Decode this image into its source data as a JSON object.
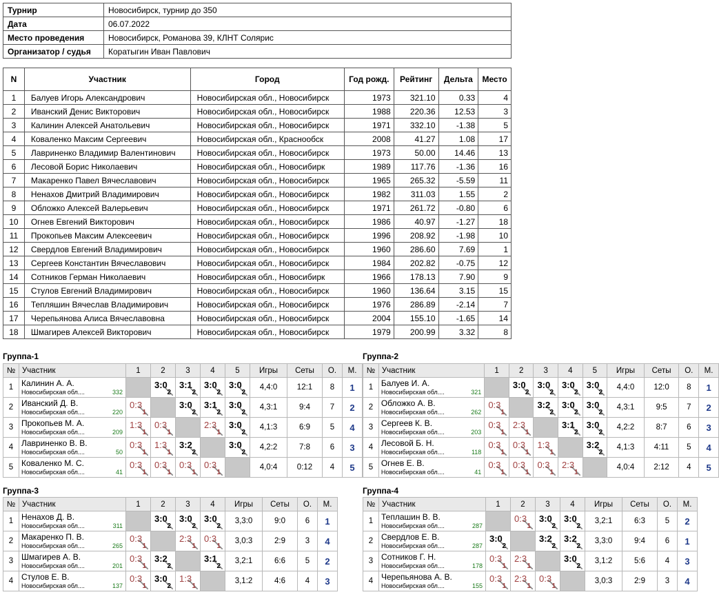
{
  "info": {
    "rows": [
      {
        "k": "Турнир",
        "v": "Новосибирск, турнир до 350"
      },
      {
        "k": "Дата",
        "v": "06.07.2022"
      },
      {
        "k": "Место проведения",
        "v": "Новосибирск, Романова 39, КЛНТ Солярис"
      },
      {
        "k": "Организатор / судья",
        "v": "Коратыгин Иван Павлович"
      }
    ]
  },
  "players": {
    "headers": [
      "N",
      "Участник",
      "Город",
      "Год рожд.",
      "Рейтинг",
      "Дельта",
      "Место"
    ],
    "rows": [
      [
        "1",
        "Балуев Игорь Александрович",
        "Новосибирская обл., Новосибирск",
        "1973",
        "321.10",
        "0.33",
        "4"
      ],
      [
        "2",
        "Иванский Денис Викторович",
        "Новосибирская обл., Новосибирск",
        "1988",
        "220.36",
        "12.53",
        "3"
      ],
      [
        "3",
        "Калинин Алексей Анатольевич",
        "Новосибирская обл., Новосибирск",
        "1971",
        "332.10",
        "-1.38",
        "5"
      ],
      [
        "4",
        "Коваленко Максим Сергеевич",
        "Новосибирская обл., Краснообск",
        "2008",
        "41.27",
        "1.08",
        "17"
      ],
      [
        "5",
        "Лавриненко Владимир Валентинович",
        "Новосибирская обл., Новосибирск",
        "1973",
        "50.00",
        "14.46",
        "13"
      ],
      [
        "6",
        "Лесовой Борис Николаевич",
        "Новосибирская обл., Новосибирк",
        "1989",
        "117.76",
        "-1.36",
        "16"
      ],
      [
        "7",
        "Макаренко Павел Вячеславович",
        "Новосибирская обл., Новосибирск",
        "1965",
        "265.32",
        "-5.59",
        "11"
      ],
      [
        "8",
        "Ненахов Дмитрий Владимирович",
        "Новосибирская обл., Новосибирск",
        "1982",
        "311.03",
        "1.55",
        "2"
      ],
      [
        "9",
        "Обложко Алексей Валерьевич",
        "Новосибирская обл., Новосибирск",
        "1971",
        "261.72",
        "-0.80",
        "6"
      ],
      [
        "10",
        "Огнев Евгений Викторович",
        "Новосибирская обл., Новосибирск",
        "1986",
        "40.97",
        "-1.27",
        "18"
      ],
      [
        "11",
        "Прокопьев Максим Алексеевич",
        "Новосибирская обл., Новосибирск",
        "1996",
        "208.92",
        "-1.98",
        "10"
      ],
      [
        "12",
        "Свердлов Евгений Владимирович",
        "Новосибирская обл., Новосибирск",
        "1960",
        "286.60",
        "7.69",
        "1"
      ],
      [
        "13",
        "Сергеев Константин Вячеславович",
        "Новосибирская обл., Новосибирск",
        "1984",
        "202.82",
        "-0.75",
        "12"
      ],
      [
        "14",
        "Сотников Герман Николаевич",
        "Новосибирская обл., Новосибирк",
        "1966",
        "178.13",
        "7.90",
        "9"
      ],
      [
        "15",
        "Стулов Евгений Владимирович",
        "Новосибирская обл., Новосибирск",
        "1960",
        "136.64",
        "3.15",
        "15"
      ],
      [
        "16",
        "Тепляшин Вячеслав Владимирович",
        "Новосибирская обл., Новосибирск",
        "1976",
        "286.89",
        "-2.14",
        "7"
      ],
      [
        "17",
        "Черепьянова Алиса Вячеславовна",
        "Новосибирская обл., Новосибирск",
        "2004",
        "155.10",
        "-1.65",
        "14"
      ],
      [
        "18",
        "Шмагирев Алексей Викторович",
        "Новосибирская обл., Новосибирск",
        "1979",
        "200.99",
        "3.32",
        "8"
      ]
    ]
  },
  "group_headers": {
    "no": "№",
    "player": "Участник",
    "games": "Игры",
    "sets": "Сеты",
    "points": "О.",
    "place": "М."
  },
  "groups": [
    {
      "title": "Группа-1",
      "rows": [
        {
          "n": "1",
          "name": "Калинин А. А.",
          "city": "Новосибирская обл....",
          "rating": "332",
          "res": [
            null,
            [
              "3:0",
              "2"
            ],
            [
              "3:1",
              "2"
            ],
            [
              "3:0",
              "2"
            ],
            [
              "3:0",
              "2"
            ]
          ],
          "games": "4,4:0",
          "sets": "12:1",
          "pts": "8",
          "place": "1"
        },
        {
          "n": "2",
          "name": "Иванский Д. В.",
          "city": "Новосибирская обл....",
          "rating": "220",
          "res": [
            [
              "0:3",
              "1"
            ],
            null,
            [
              "3:0",
              "2"
            ],
            [
              "3:1",
              "2"
            ],
            [
              "3:0",
              "2"
            ]
          ],
          "games": "4,3:1",
          "sets": "9:4",
          "pts": "7",
          "place": "2"
        },
        {
          "n": "3",
          "name": "Прокопьев М. А.",
          "city": "Новосибирская обл....",
          "rating": "209",
          "res": [
            [
              "1:3",
              "1"
            ],
            [
              "0:3",
              "1"
            ],
            null,
            [
              "2:3",
              "1"
            ],
            [
              "3:0",
              "2"
            ]
          ],
          "games": "4,1:3",
          "sets": "6:9",
          "pts": "5",
          "place": "4"
        },
        {
          "n": "4",
          "name": "Лавриненко В. В.",
          "city": "Новосибирская обл....",
          "rating": "50",
          "res": [
            [
              "0:3",
              "1"
            ],
            [
              "1:3",
              "1"
            ],
            [
              "3:2",
              "2"
            ],
            null,
            [
              "3:0",
              "2"
            ]
          ],
          "games": "4,2:2",
          "sets": "7:8",
          "pts": "6",
          "place": "3"
        },
        {
          "n": "5",
          "name": "Коваленко М. С.",
          "city": "Новосибирская обл....",
          "rating": "41",
          "res": [
            [
              "0:3",
              "1"
            ],
            [
              "0:3",
              "1"
            ],
            [
              "0:3",
              "1"
            ],
            [
              "0:3",
              "1"
            ],
            null
          ],
          "games": "4,0:4",
          "sets": "0:12",
          "pts": "4",
          "place": "5"
        }
      ]
    },
    {
      "title": "Группа-2",
      "rows": [
        {
          "n": "1",
          "name": "Балуев И. А.",
          "city": "Новосибирская обл....",
          "rating": "321",
          "res": [
            null,
            [
              "3:0",
              "2"
            ],
            [
              "3:0",
              "2"
            ],
            [
              "3:0",
              "2"
            ],
            [
              "3:0",
              "2"
            ]
          ],
          "games": "4,4:0",
          "sets": "12:0",
          "pts": "8",
          "place": "1"
        },
        {
          "n": "2",
          "name": "Обложко А. В.",
          "city": "Новосибирская обл....",
          "rating": "262",
          "res": [
            [
              "0:3",
              "1"
            ],
            null,
            [
              "3:2",
              "2"
            ],
            [
              "3:0",
              "2"
            ],
            [
              "3:0",
              "2"
            ]
          ],
          "games": "4,3:1",
          "sets": "9:5",
          "pts": "7",
          "place": "2"
        },
        {
          "n": "3",
          "name": "Сергеев К. В.",
          "city": "Новосибирская обл....",
          "rating": "203",
          "res": [
            [
              "0:3",
              "1"
            ],
            [
              "2:3",
              "1"
            ],
            null,
            [
              "3:1",
              "2"
            ],
            [
              "3:0",
              "2"
            ]
          ],
          "games": "4,2:2",
          "sets": "8:7",
          "pts": "6",
          "place": "3"
        },
        {
          "n": "4",
          "name": "Лесовой Б. Н.",
          "city": "Новосибирская обл....",
          "rating": "118",
          "res": [
            [
              "0:3",
              "1"
            ],
            [
              "0:3",
              "1"
            ],
            [
              "1:3",
              "1"
            ],
            null,
            [
              "3:2",
              "2"
            ]
          ],
          "games": "4,1:3",
          "sets": "4:11",
          "pts": "5",
          "place": "4"
        },
        {
          "n": "5",
          "name": "Огнев Е. В.",
          "city": "Новосибирская обл....",
          "rating": "41",
          "res": [
            [
              "0:3",
              "1"
            ],
            [
              "0:3",
              "1"
            ],
            [
              "0:3",
              "1"
            ],
            [
              "2:3",
              "1"
            ],
            null
          ],
          "games": "4,0:4",
          "sets": "2:12",
          "pts": "4",
          "place": "5"
        }
      ]
    },
    {
      "title": "Группа-3",
      "rows": [
        {
          "n": "1",
          "name": "Ненахов Д. В.",
          "city": "Новосибирская обл....",
          "rating": "311",
          "res": [
            null,
            [
              "3:0",
              "2"
            ],
            [
              "3:0",
              "2"
            ],
            [
              "3:0",
              "2"
            ]
          ],
          "games": "3,3:0",
          "sets": "9:0",
          "pts": "6",
          "place": "1"
        },
        {
          "n": "2",
          "name": "Макаренко П. В.",
          "city": "Новосибирская обл....",
          "rating": "265",
          "res": [
            [
              "0:3",
              "1"
            ],
            null,
            [
              "2:3",
              "1"
            ],
            [
              "0:3",
              "1"
            ]
          ],
          "games": "3,0:3",
          "sets": "2:9",
          "pts": "3",
          "place": "4"
        },
        {
          "n": "3",
          "name": "Шмагирев А. В.",
          "city": "Новосибирская обл....",
          "rating": "201",
          "res": [
            [
              "0:3",
              "1"
            ],
            [
              "3:2",
              "2"
            ],
            null,
            [
              "3:1",
              "2"
            ]
          ],
          "games": "3,2:1",
          "sets": "6:6",
          "pts": "5",
          "place": "2"
        },
        {
          "n": "4",
          "name": "Стулов Е. В.",
          "city": "Новосибирская обл....",
          "rating": "137",
          "res": [
            [
              "0:3",
              "1"
            ],
            [
              "3:0",
              "2"
            ],
            [
              "1:3",
              "1"
            ],
            null
          ],
          "games": "3,1:2",
          "sets": "4:6",
          "pts": "4",
          "place": "3"
        }
      ]
    },
    {
      "title": "Группа-4",
      "rows": [
        {
          "n": "1",
          "name": "Теплашин В. В.",
          "city": "Новосибирская обл....",
          "rating": "287",
          "res": [
            null,
            [
              "0:3",
              "1"
            ],
            [
              "3:0",
              "2"
            ],
            [
              "3:0",
              "2"
            ]
          ],
          "games": "3,2:1",
          "sets": "6:3",
          "pts": "5",
          "place": "2"
        },
        {
          "n": "2",
          "name": "Свердлов Е. В.",
          "city": "Новосибирская обл....",
          "rating": "287",
          "res": [
            [
              "3:0",
              "2"
            ],
            null,
            [
              "3:2",
              "2"
            ],
            [
              "3:2",
              "2"
            ]
          ],
          "games": "3,3:0",
          "sets": "9:4",
          "pts": "6",
          "place": "1"
        },
        {
          "n": "3",
          "name": "Сотников Г. Н.",
          "city": "Новосибирская обл....",
          "rating": "178",
          "res": [
            [
              "0:3",
              "1"
            ],
            [
              "2:3",
              "1"
            ],
            null,
            [
              "3:0",
              "2"
            ]
          ],
          "games": "3,1:2",
          "sets": "5:6",
          "pts": "4",
          "place": "3"
        },
        {
          "n": "4",
          "name": "Черепьянова А. В.",
          "city": "Новосибирская обл....",
          "rating": "155",
          "res": [
            [
              "0:3",
              "1"
            ],
            [
              "2:3",
              "1"
            ],
            [
              "0:3",
              "1"
            ],
            null
          ],
          "games": "3,0:3",
          "sets": "2:9",
          "pts": "3",
          "place": "4"
        }
      ]
    }
  ]
}
